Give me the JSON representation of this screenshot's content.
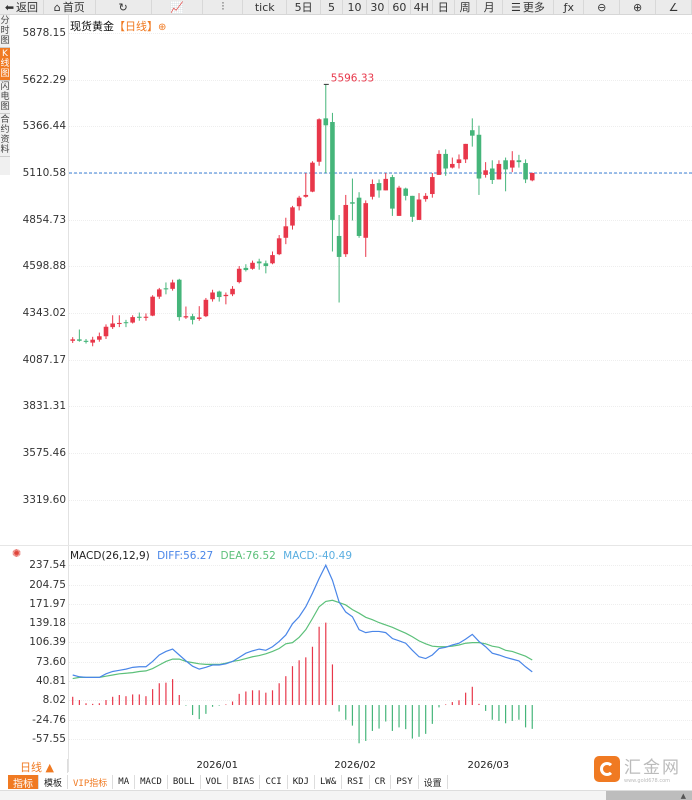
{
  "toolbar": {
    "items": [
      {
        "icon": "back-arrow-icon",
        "glyph": "⬅",
        "label": "返回",
        "w": 44
      },
      {
        "icon": "home-icon",
        "glyph": "⌂",
        "label": "首页",
        "w": 52
      },
      {
        "icon": "refresh-icon",
        "glyph": "↻",
        "label": "",
        "w": 56
      },
      {
        "icon": "line-chart-icon",
        "glyph": "📈",
        "label": "",
        "w": 52
      },
      {
        "icon": "candlestick-icon",
        "glyph": "⫶",
        "label": "",
        "w": 40
      },
      {
        "icon": "",
        "glyph": "",
        "label": "tick",
        "w": 44
      },
      {
        "icon": "",
        "glyph": "",
        "label": "5日",
        "w": 34
      },
      {
        "icon": "",
        "glyph": "",
        "label": "5",
        "w": 22
      },
      {
        "icon": "",
        "glyph": "",
        "label": "10",
        "w": 24
      },
      {
        "icon": "",
        "glyph": "",
        "label": "30",
        "w": 22
      },
      {
        "icon": "",
        "glyph": "",
        "label": "60",
        "w": 22
      },
      {
        "icon": "",
        "glyph": "",
        "label": "4H",
        "w": 22
      },
      {
        "icon": "",
        "glyph": "",
        "label": "日",
        "w": 22
      },
      {
        "icon": "",
        "glyph": "",
        "label": "周",
        "w": 22
      },
      {
        "icon": "",
        "glyph": "",
        "label": "月",
        "w": 26
      },
      {
        "icon": "menu-icon",
        "glyph": "☰",
        "label": "更多",
        "w": 52
      },
      {
        "icon": "function-icon",
        "glyph": "ƒx",
        "label": "",
        "w": 30
      },
      {
        "icon": "zoom-out-icon",
        "glyph": "⊖",
        "label": "",
        "w": 36
      },
      {
        "icon": "zoom-in-icon",
        "glyph": "⊕",
        "label": "",
        "w": 36
      },
      {
        "icon": "draw-icon",
        "glyph": "∠",
        "label": "",
        "w": 36
      }
    ]
  },
  "side_tabs": [
    {
      "label": "分时图",
      "active": false
    },
    {
      "label": "K线图",
      "active": true
    },
    {
      "label": "闪电图",
      "active": false
    },
    {
      "label": "合约资料",
      "active": false
    }
  ],
  "chart_title": {
    "name": "现货黄金",
    "period": "【日线】",
    "icon": "⊕"
  },
  "colors": {
    "up": "#e8374a",
    "down": "#45b57a",
    "last_price_line": "#3a7fd5",
    "diff": "#4a86e8",
    "dea": "#5cc07a",
    "macd": "#5aaee0",
    "accent": "#f07a22"
  },
  "chart_data": [
    {
      "type": "candlestick",
      "ylim": [
        3319.6,
        5878.15
      ],
      "yticks": [
        "5878.15",
        "5622.29",
        "5366.44",
        "5110.58",
        "4854.73",
        "4598.88",
        "4343.02",
        "4087.17",
        "3831.31",
        "3575.46",
        "3319.60"
      ],
      "last_price": 5110.58,
      "max_label": "5596.33",
      "max_index": 38,
      "ohlc": [
        [
          4190,
          4210,
          4178,
          4198
        ],
        [
          4198,
          4252,
          4185,
          4190
        ],
        [
          4190,
          4200,
          4175,
          4184
        ],
        [
          4180,
          4212,
          4160,
          4196
        ],
        [
          4196,
          4235,
          4185,
          4215
        ],
        [
          4215,
          4280,
          4200,
          4267
        ],
        [
          4265,
          4330,
          4255,
          4285
        ],
        [
          4282,
          4330,
          4265,
          4288
        ],
        [
          4292,
          4305,
          4265,
          4287
        ],
        [
          4290,
          4330,
          4285,
          4320
        ],
        [
          4322,
          4345,
          4300,
          4316
        ],
        [
          4316,
          4340,
          4300,
          4322
        ],
        [
          4328,
          4440,
          4325,
          4432
        ],
        [
          4432,
          4480,
          4420,
          4472
        ],
        [
          4478,
          4510,
          4445,
          4472
        ],
        [
          4475,
          4525,
          4465,
          4510
        ],
        [
          4525,
          4530,
          4300,
          4320
        ],
        [
          4318,
          4378,
          4310,
          4325
        ],
        [
          4325,
          4338,
          4280,
          4305
        ],
        [
          4310,
          4380,
          4300,
          4318
        ],
        [
          4325,
          4425,
          4320,
          4415
        ],
        [
          4418,
          4470,
          4405,
          4455
        ],
        [
          4460,
          4465,
          4405,
          4430
        ],
        [
          4435,
          4455,
          4390,
          4442
        ],
        [
          4445,
          4490,
          4435,
          4475
        ],
        [
          4512,
          4600,
          4505,
          4585
        ],
        [
          4590,
          4610,
          4570,
          4578
        ],
        [
          4585,
          4630,
          4580,
          4618
        ],
        [
          4625,
          4640,
          4580,
          4615
        ],
        [
          4615,
          4630,
          4560,
          4600
        ],
        [
          4615,
          4680,
          4610,
          4660
        ],
        [
          4665,
          4770,
          4660,
          4752
        ],
        [
          4755,
          4865,
          4720,
          4818
        ],
        [
          4822,
          4930,
          4800,
          4922
        ],
        [
          4928,
          4985,
          4905,
          4975
        ],
        [
          4980,
          5110,
          4975,
          4990
        ],
        [
          5008,
          5175,
          5005,
          5167
        ],
        [
          5172,
          5410,
          5150,
          5405
        ],
        [
          5410,
          5596.33,
          5110,
          5372
        ],
        [
          5390,
          5440,
          4680,
          4853
        ],
        [
          4765,
          4880,
          4400,
          4650
        ],
        [
          4665,
          4990,
          4650,
          4935
        ],
        [
          4950,
          5080,
          4850,
          4942
        ],
        [
          4975,
          5005,
          4755,
          4765
        ],
        [
          4755,
          4960,
          4650,
          4945
        ],
        [
          4980,
          5075,
          4965,
          5050
        ],
        [
          5055,
          5075,
          4975,
          5015
        ],
        [
          5015,
          5110,
          5015,
          5078
        ],
        [
          5088,
          5100,
          4875,
          4915
        ],
        [
          4875,
          5040,
          4875,
          5030
        ],
        [
          5025,
          5030,
          4960,
          4985
        ],
        [
          4985,
          4985,
          4842,
          4870
        ],
        [
          4853,
          5000,
          4853,
          4965
        ],
        [
          4967,
          5000,
          4953,
          4985
        ],
        [
          4995,
          5110,
          4975,
          5088
        ],
        [
          5100,
          5235,
          5100,
          5215
        ],
        [
          5215,
          5240,
          5095,
          5135
        ],
        [
          5140,
          5195,
          5135,
          5160
        ],
        [
          5165,
          5212,
          5135,
          5185
        ],
        [
          5185,
          5270,
          5165,
          5270
        ],
        [
          5345,
          5410,
          5255,
          5315
        ],
        [
          5320,
          5370,
          4990,
          5080
        ],
        [
          5100,
          5170,
          5085,
          5125
        ],
        [
          5135,
          5180,
          5050,
          5072
        ],
        [
          5075,
          5180,
          5075,
          5160
        ],
        [
          5180,
          5195,
          5010,
          5130
        ],
        [
          5140,
          5230,
          5115,
          5180
        ],
        [
          5180,
          5210,
          5140,
          5170
        ],
        [
          5165,
          5185,
          5055,
          5075
        ],
        [
          5070,
          5112,
          5065,
          5110.58
        ]
      ]
    },
    {
      "type": "line+bar",
      "title": "MACD(26,12,9)",
      "legend": {
        "diff": "DIFF:56.27",
        "dea": "DEA:76.52",
        "macd": "MACD:-40.49"
      },
      "ylim": [
        -57.55,
        237.54
      ],
      "yticks": [
        "237.54",
        "204.75",
        "171.97",
        "139.18",
        "106.39",
        "73.60",
        "40.81",
        "8.02",
        "-24.76",
        "-57.55"
      ],
      "diff": [
        51,
        48,
        47,
        47,
        47,
        53,
        57,
        59,
        61,
        64,
        65,
        65,
        74,
        85,
        91,
        95,
        85,
        75,
        66,
        61,
        64,
        68,
        68,
        70,
        74,
        81,
        88,
        92,
        95,
        93,
        99,
        108,
        119,
        138,
        150,
        167,
        190,
        215,
        237.54,
        212,
        175,
        158,
        150,
        128,
        123,
        125,
        125,
        123,
        113,
        109,
        105,
        93,
        82,
        79,
        85,
        96,
        98,
        102,
        105,
        112,
        120,
        108,
        99,
        88,
        85,
        81,
        78,
        75,
        65,
        56.27
      ],
      "dea": [
        45,
        47,
        47,
        47,
        47,
        49,
        51,
        53,
        54,
        55,
        57,
        58,
        62,
        68,
        74,
        78,
        78,
        74,
        72,
        70,
        69,
        69,
        69,
        71,
        74,
        76,
        79,
        82,
        84,
        87,
        91,
        96,
        104,
        106,
        115,
        128,
        147,
        167,
        176,
        178,
        174,
        170,
        162,
        156,
        149,
        145,
        140,
        136,
        132,
        127,
        122,
        116,
        109,
        104,
        100,
        99,
        99,
        100,
        102,
        105,
        106,
        106,
        104,
        100,
        98,
        93,
        91,
        87,
        83,
        76.52
      ],
      "macd": [
        14,
        8.5,
        3,
        2,
        3,
        8.5,
        14,
        17,
        15,
        18,
        18,
        15,
        27,
        37,
        38,
        44,
        17,
        -1,
        -17,
        -24,
        -15,
        -3,
        -1,
        1,
        6,
        19,
        23,
        25,
        25,
        21,
        25,
        37,
        49,
        66,
        76,
        81,
        99,
        133,
        140,
        69,
        -11,
        -25,
        -35,
        -65,
        -61,
        -44,
        -40,
        -28,
        -44,
        -38,
        -41,
        -57,
        -54,
        -49,
        -32,
        -4,
        1,
        5,
        8,
        21,
        31,
        2,
        -10,
        -25,
        -27,
        -31,
        -27,
        -25,
        -38,
        -40.49
      ]
    }
  ],
  "x_axis": [
    {
      "label": "2026/01",
      "index": 21.7
    },
    {
      "label": "2026/02",
      "index": 42.4
    },
    {
      "label": "2026/03",
      "index": 62.4
    }
  ],
  "period_selector": "日线 ▲",
  "indicator_tabs": [
    {
      "label": "指标",
      "active": true
    },
    {
      "label": "模板"
    },
    {
      "label": "VIP指标",
      "vip": true
    },
    {
      "label": "MA"
    },
    {
      "label": "MACD"
    },
    {
      "label": "BOLL"
    },
    {
      "label": "VOL"
    },
    {
      "label": "BIAS"
    },
    {
      "label": "CCI"
    },
    {
      "label": "KDJ"
    },
    {
      "label": "LW&"
    },
    {
      "label": "RSI"
    },
    {
      "label": "CR"
    },
    {
      "label": "PSY"
    },
    {
      "label": "设置"
    }
  ],
  "logo": {
    "text": "汇金网",
    "url_text": "www.gold678.com"
  }
}
